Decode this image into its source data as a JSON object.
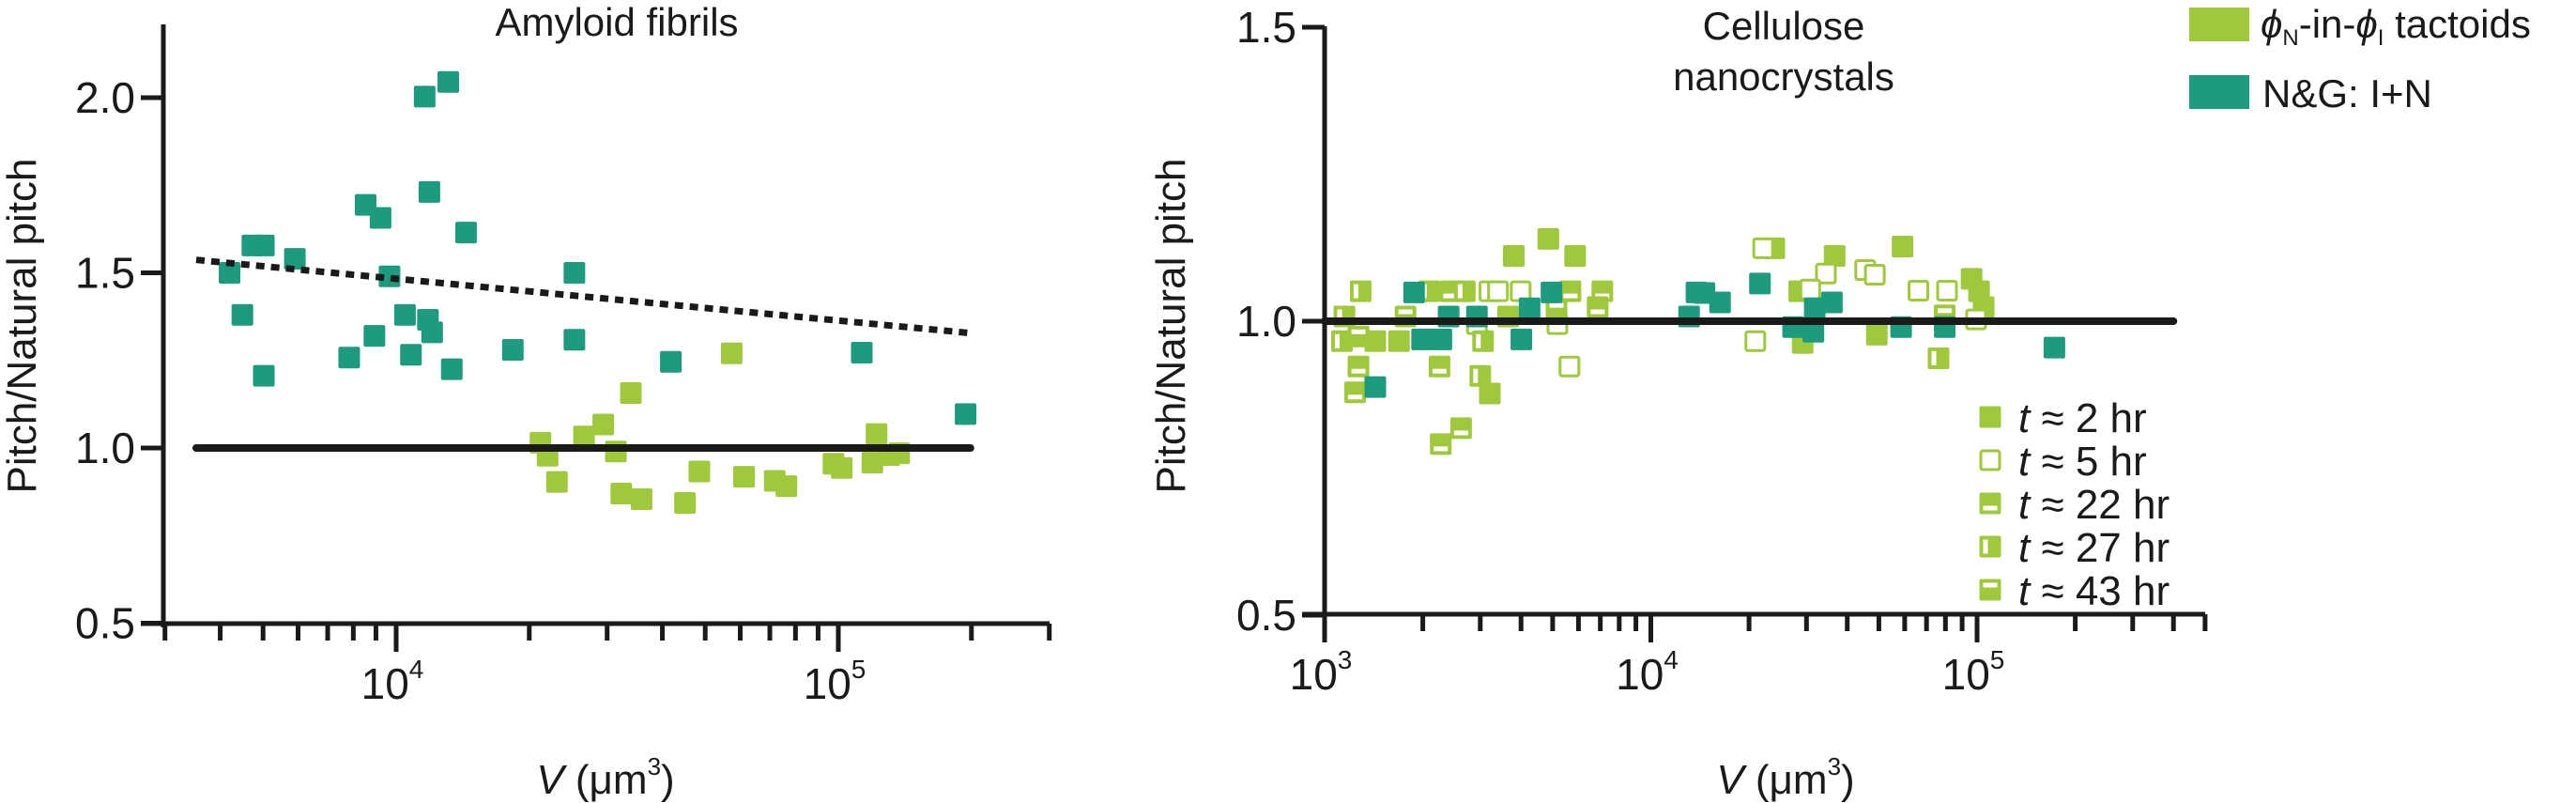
{
  "colors": {
    "tactoid_green": "#a0c83c",
    "ng_teal": "#1e9a7e",
    "axis": "#1a1a1a"
  },
  "legend": {
    "series": [
      {
        "key": "tactoid",
        "color": "#a0c83c",
        "parts": [
          "ϕ",
          "N",
          "-in-",
          "ϕ",
          "I",
          " tactoids"
        ]
      },
      {
        "key": "ng",
        "color": "#1e9a7e",
        "label": "N&G: I+N"
      }
    ],
    "time_markers": [
      {
        "style": "filled",
        "var": "t",
        "text": " ≈ 2 hr"
      },
      {
        "style": "open",
        "var": "t",
        "text": " ≈ 5 hr"
      },
      {
        "style": "bottom-bar",
        "var": "t",
        "text": " ≈ 22 hr"
      },
      {
        "style": "left-bar",
        "var": "t",
        "text": " ≈ 27 hr"
      },
      {
        "style": "top-bar",
        "var": "t",
        "text": " ≈ 43 hr"
      }
    ]
  },
  "chart_data": [
    {
      "type": "scatter",
      "title": "Amyloid fibrils",
      "xlabel_var": "V",
      "xlabel_unit": " (μm",
      "xlabel_exp": "3",
      "xlabel_close": ")",
      "ylabel": "Pitch/Natural pitch",
      "xscale": "log",
      "xlim": [
        3000,
        300000
      ],
      "ylim": [
        0.5,
        2.2
      ],
      "yticks": [
        "0.5",
        "1.0",
        "1.5",
        "2.0"
      ],
      "xticks": [
        {
          "base": "10",
          "exp": "4",
          "value": 10000
        },
        {
          "base": "10",
          "exp": "5",
          "value": 100000
        }
      ],
      "grid": false,
      "reference_lines": [
        {
          "style": "solid",
          "points": [
            [
              3530,
              1.0
            ],
            [
              199000,
              1.0
            ]
          ]
        },
        {
          "style": "dotted",
          "points": [
            [
              3530,
              1.537
            ],
            [
              199000,
              1.328
            ]
          ]
        }
      ],
      "series": [
        {
          "name": "ϕN-in-ϕI tactoids",
          "color": "#a0c83c",
          "marker": "filled",
          "points": [
            [
              57400,
              1.27
            ],
            [
              33950,
              1.157
            ],
            [
              29400,
              1.067
            ],
            [
              26600,
              1.033
            ],
            [
              21200,
              1.015
            ],
            [
              22000,
              0.978
            ],
            [
              23100,
              0.903
            ],
            [
              31400,
              0.99
            ],
            [
              32300,
              0.87
            ],
            [
              35900,
              0.854
            ],
            [
              45000,
              0.843
            ],
            [
              48500,
              0.933
            ],
            [
              61200,
              0.918
            ],
            [
              71800,
              0.906
            ],
            [
              76300,
              0.891
            ],
            [
              97500,
              0.955
            ],
            [
              101800,
              0.943
            ],
            [
              122000,
              1.04
            ],
            [
              119400,
              0.958
            ],
            [
              130300,
              0.98
            ],
            [
              137300,
              0.985
            ]
          ]
        },
        {
          "name": "N&G: I+N",
          "color": "#1e9a7e",
          "marker": "filled",
          "points": [
            [
              4200,
              1.5
            ],
            [
              4490,
              1.38
            ],
            [
              4730,
              1.578
            ],
            [
              5020,
              1.578
            ],
            [
              5020,
              1.206
            ],
            [
              5900,
              1.54
            ],
            [
              7830,
              1.258
            ],
            [
              8530,
              1.694
            ],
            [
              8930,
              1.32
            ],
            [
              9220,
              1.657
            ],
            [
              9660,
              1.49
            ],
            [
              10470,
              1.38
            ],
            [
              10800,
              1.266
            ],
            [
              11600,
              2.003
            ],
            [
              11800,
              1.366
            ],
            [
              11890,
              1.731
            ],
            [
              12060,
              1.33
            ],
            [
              13120,
              2.045
            ],
            [
              13360,
              1.225
            ],
            [
              14390,
              1.615
            ],
            [
              18360,
              1.28
            ],
            [
              25300,
              1.5
            ],
            [
              25300,
              1.309
            ],
            [
              41800,
              1.246
            ],
            [
              113000,
              1.272
            ],
            [
              194000,
              1.097
            ]
          ]
        }
      ]
    },
    {
      "type": "scatter",
      "title_lines": [
        "Cellulose",
        "nanocrystals"
      ],
      "xlabel_var": "V",
      "xlabel_unit": " (μm",
      "xlabel_exp": "3",
      "xlabel_close": ")",
      "ylabel": "Pitch/Natural pitch",
      "xscale": "log",
      "xlim": [
        1000,
        500000
      ],
      "ylim": [
        0.5,
        1.5
      ],
      "yticks": [
        "0.5",
        "1.0",
        "1.5"
      ],
      "xticks": [
        {
          "base": "10",
          "exp": "3",
          "value": 1000
        },
        {
          "base": "10",
          "exp": "4",
          "value": 10000
        },
        {
          "base": "10",
          "exp": "5",
          "value": 100000
        }
      ],
      "grid": false,
      "legend_placement": "top-right",
      "reference_lines": [
        {
          "style": "solid",
          "points": [
            [
              1000,
              1.0
            ],
            [
              400000,
              1.0
            ]
          ]
        }
      ],
      "series": [
        {
          "name": "ϕN-in-ϕI tactoids",
          "time": "t ≈ 2 hr",
          "color": "#a0c83c",
          "marker": "filled",
          "points": [
            [
              3800,
              1.111
            ],
            [
              4850,
              1.14
            ],
            [
              5860,
              1.111
            ],
            [
              1690,
              0.966
            ],
            [
              1430,
              0.966
            ],
            [
              3210,
              0.877
            ],
            [
              3650,
              1.008
            ],
            [
              59100,
              1.127
            ],
            [
              36600,
              1.111
            ],
            [
              23900,
              1.124
            ],
            [
              49300,
              0.977
            ],
            [
              29200,
              0.963
            ],
            [
              28500,
              1.051
            ],
            [
              96200,
              1.072
            ],
            [
              101400,
              1.051
            ],
            [
              104800,
              1.024
            ]
          ]
        },
        {
          "name": "ϕN-in-ϕI tactoids",
          "time": "t ≈ 5 hr",
          "color": "#a0c83c",
          "marker": "open",
          "points": [
            [
              3200,
              1.051
            ],
            [
              5630,
              0.923
            ],
            [
              3400,
              1.051
            ],
            [
              3990,
              1.051
            ],
            [
              5170,
              0.995
            ],
            [
              2930,
              0.995
            ],
            [
              22100,
              1.124
            ],
            [
              34400,
              1.081
            ],
            [
              45400,
              1.087
            ],
            [
              48600,
              1.079
            ],
            [
              66100,
              1.052
            ],
            [
              80900,
              1.052
            ],
            [
              30800,
              1.054
            ],
            [
              20900,
              0.966
            ],
            [
              99300,
              1.003
            ]
          ]
        },
        {
          "name": "ϕN-in-ϕI tactoids",
          "time": "t ≈ 22 hr",
          "color": "#a0c83c",
          "marker": "bottom-bar",
          "points": [
            [
              7100,
              1.051
            ],
            [
              1270,
              0.923
            ],
            [
              1240,
              0.879
            ],
            [
              2250,
              0.923
            ],
            [
              2620,
              0.818
            ],
            [
              2270,
              0.791
            ],
            [
              2430,
              1.051
            ],
            [
              6870,
              1.024
            ],
            [
              5670,
              1.051
            ]
          ]
        },
        {
          "name": "ϕN-in-ϕI tactoids",
          "time": "t ≈ 27 hr",
          "color": "#a0c83c",
          "marker": "left-bar",
          "points": [
            [
              2690,
              1.051
            ],
            [
              1290,
              1.051
            ],
            [
              1150,
              1.008
            ],
            [
              1130,
              0.966
            ],
            [
              3000,
              0.907
            ],
            [
              3060,
              0.966
            ],
            [
              2090,
              1.051
            ],
            [
              76200,
              0.937
            ]
          ]
        },
        {
          "name": "ϕN-in-ϕI tactoids",
          "time": "t ≈ 43 hr",
          "color": "#a0c83c",
          "marker": "top-bar",
          "points": [
            [
              1270,
              0.974
            ],
            [
              1770,
              1.008
            ],
            [
              5140,
              1.019
            ],
            [
              79600,
              1.01
            ]
          ]
        },
        {
          "name": "N&G: I+N",
          "color": "#1e9a7e",
          "marker": "filled",
          "points": [
            [
              1880,
              1.049
            ],
            [
              2400,
              1.008
            ],
            [
              2930,
              1.008
            ],
            [
              1990,
              0.969
            ],
            [
              2280,
              0.969
            ],
            [
              4010,
              0.969
            ],
            [
              4250,
              1.022
            ],
            [
              4960,
              1.049
            ],
            [
              1430,
              0.888
            ],
            [
              13800,
              1.049
            ],
            [
              13100,
              1.008
            ],
            [
              14600,
              1.048
            ],
            [
              16300,
              1.032
            ],
            [
              21600,
              1.064
            ],
            [
              27300,
              0.99
            ],
            [
              31500,
              0.982
            ],
            [
              31800,
              1.022
            ],
            [
              35900,
              1.032
            ],
            [
              58500,
              0.99
            ],
            [
              79600,
              0.99
            ],
            [
              172600,
              0.955
            ]
          ]
        }
      ]
    }
  ]
}
